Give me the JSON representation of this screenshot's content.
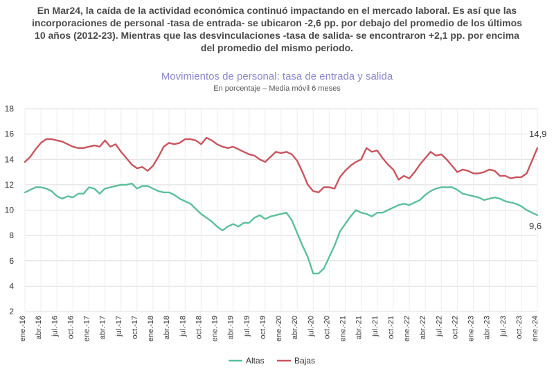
{
  "headline": {
    "line1": "En Mar24, la caída de la actividad económica continuó impactando en el mercado laboral. Es así que las",
    "line2": "incorporaciones de personal -tasa de entrada- se ubicaron -2,6 pp. por debajo del promedio de los últimos",
    "line3": "10 años (2012-23). Mientras que las desvinculaciones -tasa de salida- se encontraron +2,1 pp. por encima",
    "line4": "del promedio del mismo periodo."
  },
  "chart_data": {
    "type": "line",
    "title": "Movimientos de personal: tasa de entrada y salida",
    "subtitle": "En porcentaje – Media móvil 6 meses",
    "ylim": [
      2,
      18
    ],
    "yticks": [
      2,
      4,
      6,
      8,
      10,
      12,
      14,
      16,
      18
    ],
    "grid": true,
    "x_tick_labels": [
      "ene.-16",
      "abr.-16",
      "jul.-16",
      "oct.-16",
      "ene.-17",
      "abr.-17",
      "jul.-17",
      "oct.-17",
      "ene.-18",
      "abr.-18",
      "jul.-18",
      "oct.-18",
      "ene.-19",
      "abr.-19",
      "jul.-19",
      "oct.-19",
      "ene.-20",
      "abr.-20",
      "jul.-20",
      "oct.-20",
      "ene.-21",
      "abr.-21",
      "jul.-21",
      "oct.-21",
      "ene.-22",
      "abr.-22",
      "jul.-22",
      "oct.-22",
      "ene.-23",
      "abr.-23",
      "jul.-23",
      "oct.-23",
      "ene.-24"
    ],
    "series": [
      {
        "name": "Altas",
        "color": "#5bbf9b",
        "end_label": "9,6",
        "values": [
          11.4,
          11.6,
          11.8,
          11.8,
          11.7,
          11.5,
          11.1,
          10.9,
          11.1,
          11.0,
          11.3,
          11.3,
          11.8,
          11.7,
          11.3,
          11.7,
          11.8,
          11.9,
          12.0,
          12.0,
          12.1,
          11.7,
          11.9,
          11.9,
          11.7,
          11.5,
          11.4,
          11.4,
          11.2,
          10.9,
          10.7,
          10.5,
          10.1,
          9.7,
          9.4,
          9.1,
          8.7,
          8.4,
          8.7,
          8.9,
          8.7,
          9.0,
          9.0,
          9.4,
          9.6,
          9.3,
          9.5,
          9.6,
          9.7,
          9.8,
          9.2,
          8.2,
          7.2,
          6.3,
          5.0,
          5.0,
          5.4,
          6.3,
          7.2,
          8.3,
          8.9,
          9.5,
          10.0,
          9.8,
          9.7,
          9.5,
          9.8,
          9.8,
          10.0,
          10.2,
          10.4,
          10.5,
          10.4,
          10.6,
          10.8,
          11.2,
          11.5,
          11.7,
          11.8,
          11.8,
          11.8,
          11.6,
          11.3,
          11.2,
          11.1,
          11.0,
          10.8,
          10.9,
          11.0,
          10.9,
          10.7,
          10.6,
          10.5,
          10.3,
          10.0,
          9.8,
          9.6
        ]
      },
      {
        "name": "Bajas",
        "color": "#c9545e",
        "end_label": "14,9",
        "values": [
          13.8,
          14.2,
          14.8,
          15.3,
          15.6,
          15.6,
          15.5,
          15.4,
          15.2,
          15.0,
          14.9,
          14.9,
          15.0,
          15.1,
          15.0,
          15.5,
          15.0,
          15.2,
          14.6,
          14.1,
          13.6,
          13.3,
          13.4,
          13.1,
          13.5,
          14.2,
          15.0,
          15.3,
          15.2,
          15.3,
          15.6,
          15.6,
          15.5,
          15.2,
          15.7,
          15.5,
          15.2,
          15.0,
          14.9,
          15.0,
          14.8,
          14.6,
          14.4,
          14.3,
          14.0,
          13.8,
          14.2,
          14.6,
          14.5,
          14.6,
          14.4,
          13.9,
          13.0,
          12.0,
          11.5,
          11.4,
          11.8,
          11.8,
          11.7,
          12.6,
          13.1,
          13.5,
          13.8,
          14.0,
          14.9,
          14.6,
          14.7,
          14.1,
          13.6,
          13.2,
          12.4,
          12.7,
          12.5,
          13.0,
          13.6,
          14.1,
          14.6,
          14.3,
          14.4,
          14.0,
          13.5,
          13.0,
          13.2,
          13.1,
          12.9,
          12.9,
          13.0,
          13.2,
          13.1,
          12.7,
          12.7,
          12.5,
          12.6,
          12.6,
          12.9,
          13.9,
          14.9
        ]
      }
    ]
  }
}
